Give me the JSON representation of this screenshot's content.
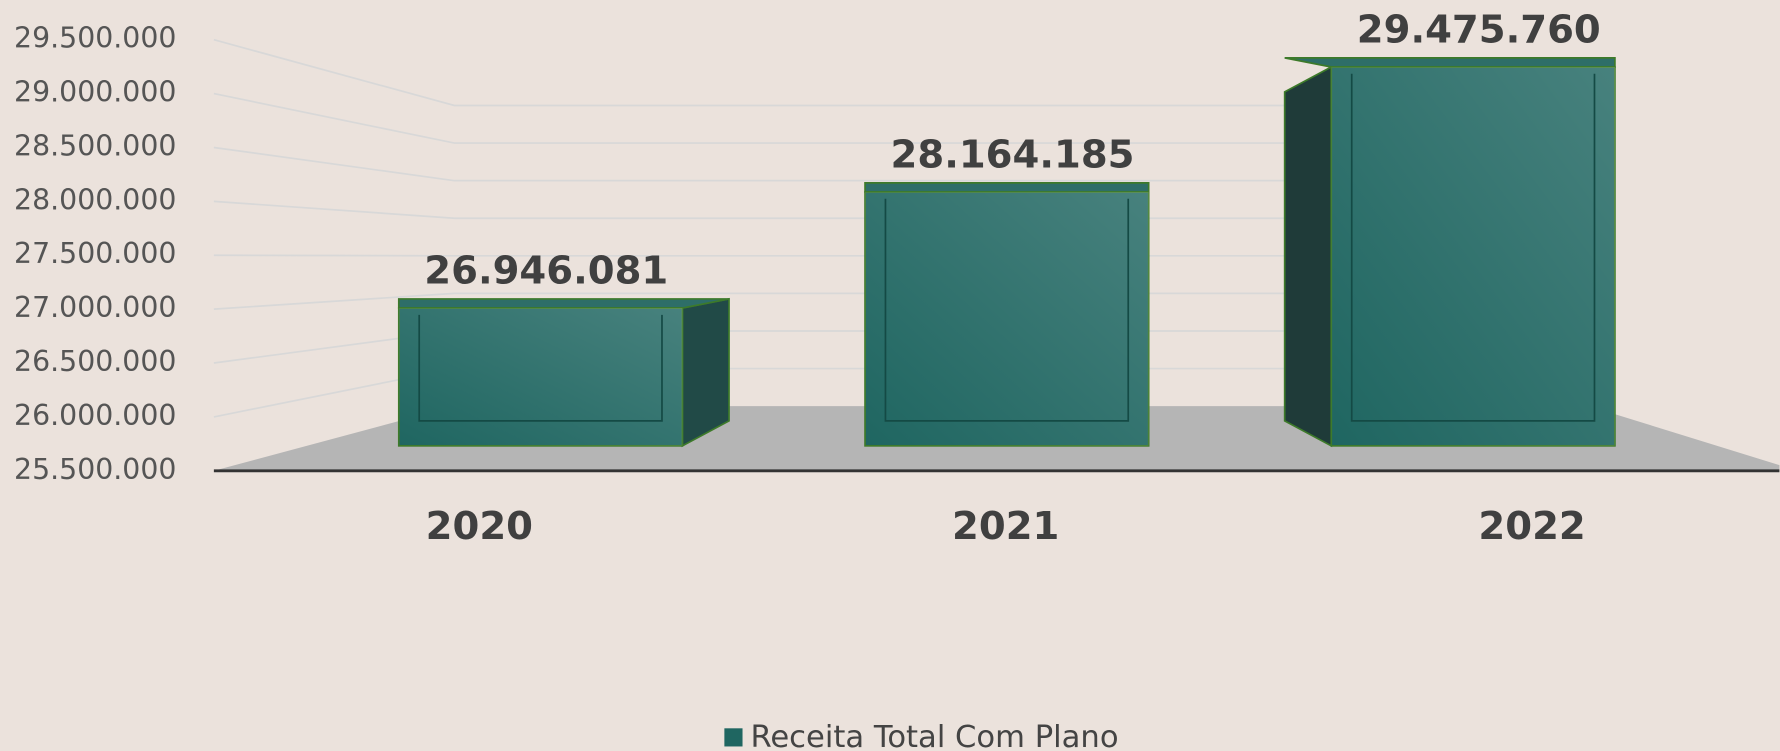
{
  "chart_data": {
    "type": "bar3d",
    "categories": [
      "2020",
      "2021",
      "2022"
    ],
    "series": [
      {
        "name": "Receita Total Com Plano",
        "color": "#1f6661",
        "values": [
          26946081,
          28164185,
          29475760
        ],
        "value_labels": [
          "26.946.081",
          "28.164.185",
          "29.475.760"
        ]
      }
    ],
    "ylim": [
      25500000,
      29500000
    ],
    "yticks": [
      {
        "value": 25500000,
        "label": "25.500.000"
      },
      {
        "value": 26000000,
        "label": "26.000.000"
      },
      {
        "value": 26500000,
        "label": "26.500.000"
      },
      {
        "value": 27000000,
        "label": "27.000.000"
      },
      {
        "value": 27500000,
        "label": "27.500.000"
      },
      {
        "value": 28000000,
        "label": "28.000.000"
      },
      {
        "value": 28500000,
        "label": "28.500.000"
      },
      {
        "value": 29000000,
        "label": "29.000.000"
      },
      {
        "value": 29500000,
        "label": "29.500.000"
      }
    ],
    "grid": true,
    "legend": "bottom"
  }
}
